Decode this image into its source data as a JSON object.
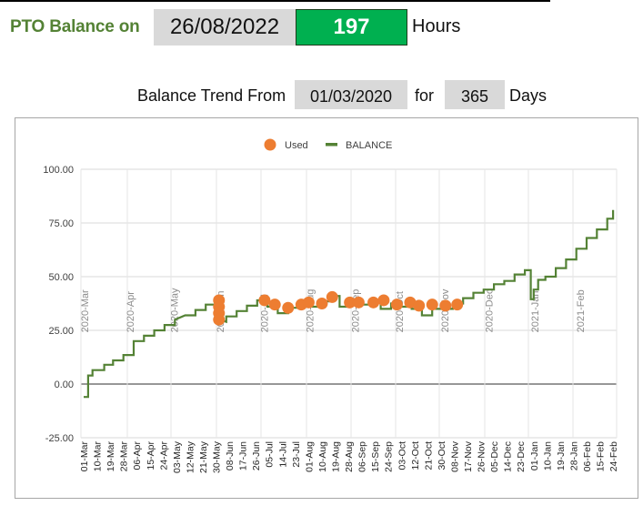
{
  "header": {
    "pto_label": "PTO Balance on",
    "balance_date": "26/08/2022",
    "balance_hours": "197",
    "hours_unit": "Hours"
  },
  "trend": {
    "label": "Balance Trend From",
    "from_date": "01/03/2020",
    "for_label": "for",
    "days": "365",
    "days_unit": "Days"
  },
  "colors": {
    "title_green": "#548235",
    "hours_box_green": "#00b050",
    "input_gray": "#d9d9d9",
    "balance_line": "#548235",
    "used_marker": "#ed7d31"
  },
  "chart_data": {
    "type": "line",
    "title": "",
    "xlabel": "",
    "ylabel": "",
    "ylim": [
      -25,
      100
    ],
    "yticks": [
      "100.00",
      "75.00",
      "50.00",
      "25.00",
      "0.00",
      "-25.00"
    ],
    "grid": true,
    "legend_position": "top",
    "legend": [
      {
        "name": "Used",
        "marker": "circle",
        "color": "#ed7d31"
      },
      {
        "name": "BALANCE",
        "marker": "line",
        "color": "#548235"
      }
    ],
    "x_tick_labels": [
      "01-Mar",
      "10-Mar",
      "19-Mar",
      "28-Mar",
      "06-Apr",
      "15-Apr",
      "24-Apr",
      "03-May",
      "12-May",
      "21-May",
      "30-May",
      "08-Jun",
      "17-Jun",
      "26-Jun",
      "05-Jul",
      "14-Jul",
      "23-Jul",
      "01-Aug",
      "10-Aug",
      "19-Aug",
      "28-Aug",
      "06-Sep",
      "15-Sep",
      "24-Sep",
      "03-Oct",
      "12-Oct",
      "21-Oct",
      "30-Oct",
      "08-Nov",
      "17-Nov",
      "26-Nov",
      "05-Dec",
      "14-Dec",
      "23-Dec",
      "01-Jan",
      "10-Jan",
      "19-Jan",
      "28-Jan",
      "06-Feb",
      "15-Feb",
      "24-Feb"
    ],
    "month_annotations": [
      {
        "label": "2020-Mar",
        "day": 0
      },
      {
        "label": "2020-Apr",
        "day": 31
      },
      {
        "label": "2020-May",
        "day": 61
      },
      {
        "label": "2020-Jun",
        "day": 92
      },
      {
        "label": "2020-Jul",
        "day": 122
      },
      {
        "label": "2020-Aug",
        "day": 153
      },
      {
        "label": "2020-Sep",
        "day": 184
      },
      {
        "label": "2020-Oct",
        "day": 214
      },
      {
        "label": "2020-Nov",
        "day": 245
      },
      {
        "label": "2020-Dec",
        "day": 275
      },
      {
        "label": "2021-Jan",
        "day": 306
      },
      {
        "label": "2021-Feb",
        "day": 337
      }
    ],
    "series": [
      {
        "name": "BALANCE",
        "type": "step-line",
        "points": [
          [
            0,
            -6
          ],
          [
            3,
            -6
          ],
          [
            3,
            4
          ],
          [
            6,
            4
          ],
          [
            6,
            6.5
          ],
          [
            14,
            6.5
          ],
          [
            14,
            9
          ],
          [
            20,
            9
          ],
          [
            20,
            11
          ],
          [
            27,
            11
          ],
          [
            27,
            13.5
          ],
          [
            34,
            13.5
          ],
          [
            34,
            20
          ],
          [
            41,
            20
          ],
          [
            41,
            22.5
          ],
          [
            48,
            22.5
          ],
          [
            48,
            25
          ],
          [
            55,
            25
          ],
          [
            55,
            27.5
          ],
          [
            62,
            27.5
          ],
          [
            62,
            30
          ],
          [
            69,
            32
          ],
          [
            76,
            32
          ],
          [
            76,
            34.5
          ],
          [
            83,
            34.5
          ],
          [
            83,
            37
          ],
          [
            91,
            37
          ],
          [
            91,
            38
          ],
          [
            92,
            38
          ],
          [
            92,
            30
          ],
          [
            97,
            29
          ],
          [
            97,
            31.5
          ],
          [
            104,
            31.5
          ],
          [
            104,
            34
          ],
          [
            111,
            34
          ],
          [
            111,
            36.5
          ],
          [
            118,
            36.5
          ],
          [
            118,
            39
          ],
          [
            125,
            39
          ],
          [
            125,
            36
          ],
          [
            132,
            36
          ],
          [
            132,
            33
          ],
          [
            139,
            33
          ],
          [
            139,
            35.5
          ],
          [
            146,
            35.5
          ],
          [
            146,
            38
          ],
          [
            153,
            38
          ],
          [
            153,
            36
          ],
          [
            160,
            36
          ],
          [
            160,
            38.5
          ],
          [
            167,
            38.5
          ],
          [
            167,
            41
          ],
          [
            174,
            41
          ],
          [
            174,
            36
          ],
          [
            181,
            36
          ],
          [
            181,
            39
          ],
          [
            188,
            39
          ],
          [
            188,
            37
          ],
          [
            195,
            37
          ],
          [
            195,
            39
          ],
          [
            202,
            39
          ],
          [
            202,
            35
          ],
          [
            209,
            35
          ],
          [
            209,
            37.5
          ],
          [
            216,
            37.5
          ],
          [
            216,
            36
          ],
          [
            223,
            36
          ],
          [
            223,
            35
          ],
          [
            230,
            35
          ],
          [
            230,
            32
          ],
          [
            237,
            32
          ],
          [
            237,
            35
          ],
          [
            251,
            35
          ],
          [
            251,
            37.5
          ],
          [
            258,
            37.5
          ],
          [
            258,
            40
          ],
          [
            265,
            40
          ],
          [
            265,
            42.5
          ],
          [
            272,
            42.5
          ],
          [
            272,
            44
          ],
          [
            279,
            44
          ],
          [
            279,
            46.5
          ],
          [
            286,
            46.5
          ],
          [
            286,
            48
          ],
          [
            293,
            48
          ],
          [
            293,
            51
          ],
          [
            300,
            51
          ],
          [
            300,
            53
          ],
          [
            304,
            53
          ],
          [
            304,
            39.5
          ],
          [
            306,
            39.5
          ],
          [
            306,
            44
          ],
          [
            309,
            44
          ],
          [
            309,
            48.5
          ],
          [
            314,
            48.5
          ],
          [
            314,
            50
          ],
          [
            321,
            50
          ],
          [
            321,
            54
          ],
          [
            328,
            54
          ],
          [
            328,
            58
          ],
          [
            335,
            58
          ],
          [
            335,
            63
          ],
          [
            342,
            63
          ],
          [
            342,
            68
          ],
          [
            349,
            68
          ],
          [
            349,
            72
          ],
          [
            356,
            72
          ],
          [
            356,
            77
          ],
          [
            360,
            77
          ],
          [
            360,
            81
          ]
        ]
      },
      {
        "name": "Used",
        "type": "scatter",
        "points": [
          [
            92,
            39
          ],
          [
            92,
            36
          ],
          [
            92,
            33
          ],
          [
            92,
            30
          ],
          [
            123,
            39
          ],
          [
            130,
            37
          ],
          [
            139,
            35.5
          ],
          [
            148,
            37
          ],
          [
            153,
            38
          ],
          [
            162,
            37.5
          ],
          [
            169,
            40.5
          ],
          [
            181,
            38
          ],
          [
            187,
            38
          ],
          [
            197,
            38
          ],
          [
            204,
            39
          ],
          [
            213,
            37
          ],
          [
            222,
            38
          ],
          [
            228,
            36.5
          ],
          [
            237,
            37
          ],
          [
            246,
            36.5
          ],
          [
            254,
            37
          ]
        ]
      }
    ]
  }
}
